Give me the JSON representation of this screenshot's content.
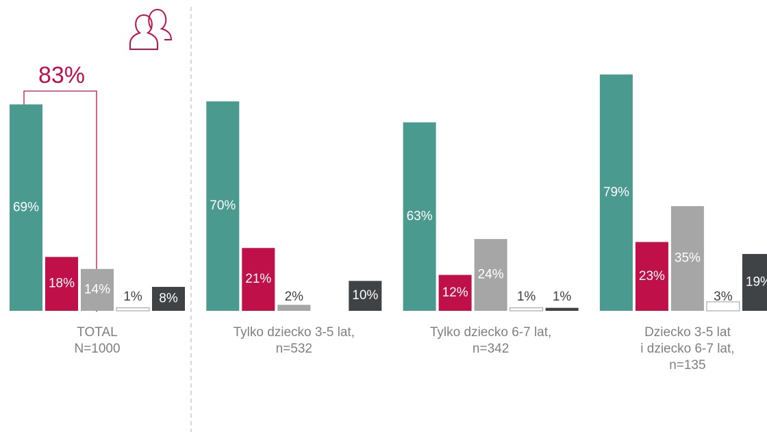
{
  "chart_data": {
    "type": "bar",
    "categories": [
      [
        "TOTAL",
        "N=1000"
      ],
      [
        "Tylko dziecko 3-5 lat,",
        "n=532"
      ],
      [
        "Tylko dziecko 6-7 lat,",
        "n=342"
      ],
      [
        "Dziecko 3-5 lat",
        "i dziecko 6-7 lat,",
        "n=135"
      ]
    ],
    "series": [
      {
        "color": "#4a9a8f",
        "values": [
          69,
          70,
          63,
          79
        ],
        "value_labels": [
          "69%",
          "70%",
          "63%",
          "79%"
        ]
      },
      {
        "color": "#c0104a",
        "values": [
          18,
          21,
          12,
          23
        ],
        "value_labels": [
          "18%",
          "21%",
          "12%",
          "23%"
        ]
      },
      {
        "color": "#a6a6a6",
        "values": [
          14,
          2,
          24,
          35
        ],
        "value_labels": [
          "14%",
          "2%",
          "24%",
          "35%"
        ]
      },
      {
        "color": "#ffffff",
        "values": [
          1,
          null,
          1,
          3
        ],
        "value_labels": [
          "1%",
          null,
          "1%",
          "3%"
        ]
      },
      {
        "color": "#404345",
        "values": [
          8,
          10,
          1,
          19
        ],
        "value_labels": [
          "8%",
          "10%",
          "1%",
          "19%"
        ]
      }
    ],
    "ylim": [
      0,
      100
    ],
    "annotations": [
      {
        "text": "83%"
      }
    ]
  }
}
